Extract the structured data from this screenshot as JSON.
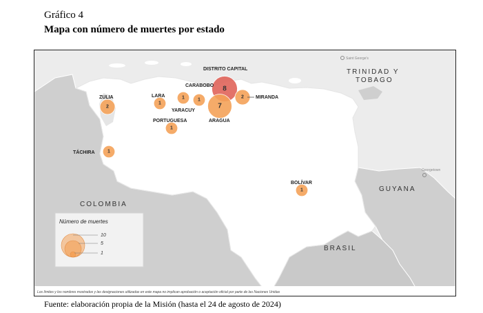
{
  "figure": {
    "label": "Gráfico 4",
    "title": "Mapa con número de muertes por estado",
    "source": "Fuente: elaboración propia de la Misión (hasta el 24 de agosto de 2024)"
  },
  "map": {
    "countries": {
      "trinidad_line1": "TRINIDAD Y",
      "trinidad_line2": "TOBAGO",
      "colombia": "COLOMBIA",
      "guyana": "GUYANA",
      "brasil": "BRASIL"
    },
    "places": {
      "saint_georges": "Saint George's",
      "georgetown": "Georgetown"
    },
    "states": [
      {
        "id": "distrito_capital",
        "name": "DISTRITO CAPITAL",
        "deaths": 8,
        "color": "#e0645a"
      },
      {
        "id": "aragua",
        "name": "ARAGUA",
        "deaths": 7,
        "color": "#f4a259"
      },
      {
        "id": "miranda",
        "name": "MIRANDA",
        "deaths": 2,
        "color": "#f4a259"
      },
      {
        "id": "zulia",
        "name": "ZULIA",
        "deaths": 2,
        "color": "#f4a259"
      },
      {
        "id": "carabobo",
        "name": "CARABOBO",
        "deaths": 1,
        "color": "#f4a259"
      },
      {
        "id": "lara",
        "name": "LARA",
        "deaths": 1,
        "color": "#f4a259"
      },
      {
        "id": "yaracuy",
        "name": "YARACUY",
        "deaths": 1,
        "color": "#f4a259"
      },
      {
        "id": "portuguesa",
        "name": "PORTUGUESA",
        "deaths": 1,
        "color": "#f4a259"
      },
      {
        "id": "tachira",
        "name": "TÁCHIRA",
        "deaths": 1,
        "color": "#f4a259"
      },
      {
        "id": "bolivar",
        "name": "BOLÍVAR",
        "deaths": 1,
        "color": "#f4a259"
      }
    ],
    "legend": {
      "title": "Número de muertes",
      "values": [
        "10",
        "5",
        "1"
      ]
    },
    "disclaimer": "Los límites y los nombres mostrados y las designaciones utilizadas en este mapa no implican aprobación o aceptación oficial por parte de las Naciones Unidas"
  }
}
